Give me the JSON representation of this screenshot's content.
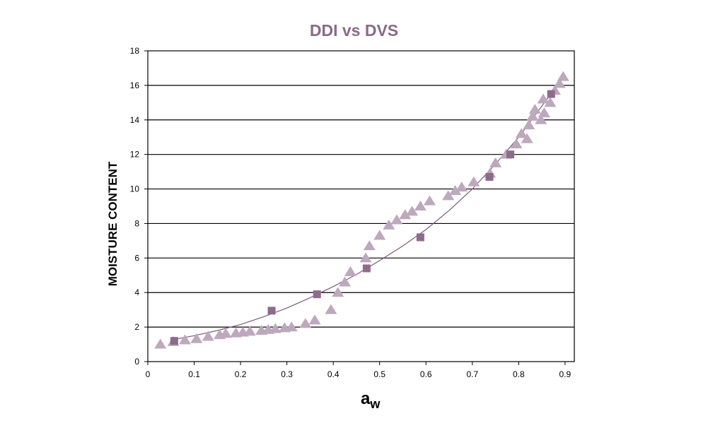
{
  "chart_data": {
    "type": "scatter",
    "title": "DDI vs DVS",
    "xlabel": "a",
    "xlabel_sub": "w",
    "ylabel": "MOISTURE CONTENT",
    "xlim": [
      0,
      0.92
    ],
    "ylim": [
      0,
      18
    ],
    "x_ticks": [
      0,
      0.1,
      0.2,
      0.3,
      0.4,
      0.5,
      0.6,
      0.7,
      0.8,
      0.9
    ],
    "y_ticks": [
      0,
      2,
      4,
      6,
      8,
      10,
      12,
      14,
      16,
      18
    ],
    "grid": "horizontal",
    "colors": {
      "title": "#8a6a88",
      "triangles": "#bda8bd",
      "squares": "#8e6b8c",
      "curve": "#7c5a7a",
      "grid": "#000000"
    },
    "series": [
      {
        "marker": "triangle",
        "points": [
          [
            0.027,
            1.0
          ],
          [
            0.055,
            1.15
          ],
          [
            0.08,
            1.25
          ],
          [
            0.105,
            1.32
          ],
          [
            0.13,
            1.45
          ],
          [
            0.155,
            1.55
          ],
          [
            0.168,
            1.62
          ],
          [
            0.19,
            1.65
          ],
          [
            0.205,
            1.7
          ],
          [
            0.22,
            1.75
          ],
          [
            0.245,
            1.8
          ],
          [
            0.26,
            1.85
          ],
          [
            0.275,
            1.9
          ],
          [
            0.295,
            1.95
          ],
          [
            0.31,
            2.0
          ],
          [
            0.34,
            2.2
          ],
          [
            0.36,
            2.4
          ],
          [
            0.395,
            3.0
          ],
          [
            0.41,
            4.0
          ],
          [
            0.425,
            4.6
          ],
          [
            0.437,
            5.2
          ],
          [
            0.47,
            6.0
          ],
          [
            0.478,
            6.7
          ],
          [
            0.5,
            7.3
          ],
          [
            0.52,
            7.9
          ],
          [
            0.537,
            8.2
          ],
          [
            0.555,
            8.5
          ],
          [
            0.57,
            8.7
          ],
          [
            0.588,
            9.0
          ],
          [
            0.608,
            9.3
          ],
          [
            0.648,
            9.6
          ],
          [
            0.663,
            9.9
          ],
          [
            0.677,
            10.1
          ],
          [
            0.703,
            10.4
          ],
          [
            0.738,
            10.9
          ],
          [
            0.75,
            11.5
          ],
          [
            0.773,
            12.0
          ],
          [
            0.795,
            12.6
          ],
          [
            0.806,
            13.2
          ],
          [
            0.818,
            12.9
          ],
          [
            0.822,
            13.7
          ],
          [
            0.83,
            14.2
          ],
          [
            0.835,
            14.6
          ],
          [
            0.848,
            14.0
          ],
          [
            0.853,
            15.2
          ],
          [
            0.855,
            14.4
          ],
          [
            0.868,
            15.0
          ],
          [
            0.878,
            15.7
          ],
          [
            0.888,
            16.1
          ],
          [
            0.896,
            16.5
          ]
        ]
      },
      {
        "marker": "square",
        "points": [
          [
            0.057,
            1.2
          ],
          [
            0.267,
            2.95
          ],
          [
            0.365,
            3.9
          ],
          [
            0.472,
            5.4
          ],
          [
            0.588,
            7.2
          ],
          [
            0.737,
            10.7
          ],
          [
            0.782,
            12.0
          ],
          [
            0.87,
            15.5
          ]
        ]
      },
      {
        "marker": "line",
        "points": [
          [
            0.05,
            1.25
          ],
          [
            0.1,
            1.5
          ],
          [
            0.15,
            1.8
          ],
          [
            0.2,
            2.15
          ],
          [
            0.25,
            2.6
          ],
          [
            0.3,
            3.1
          ],
          [
            0.35,
            3.7
          ],
          [
            0.4,
            4.35
          ],
          [
            0.45,
            5.05
          ],
          [
            0.5,
            5.85
          ],
          [
            0.55,
            6.7
          ],
          [
            0.6,
            7.65
          ],
          [
            0.65,
            8.75
          ],
          [
            0.7,
            10.0
          ],
          [
            0.75,
            11.45
          ],
          [
            0.8,
            13.0
          ],
          [
            0.85,
            14.8
          ],
          [
            0.9,
            16.6
          ]
        ]
      }
    ]
  }
}
